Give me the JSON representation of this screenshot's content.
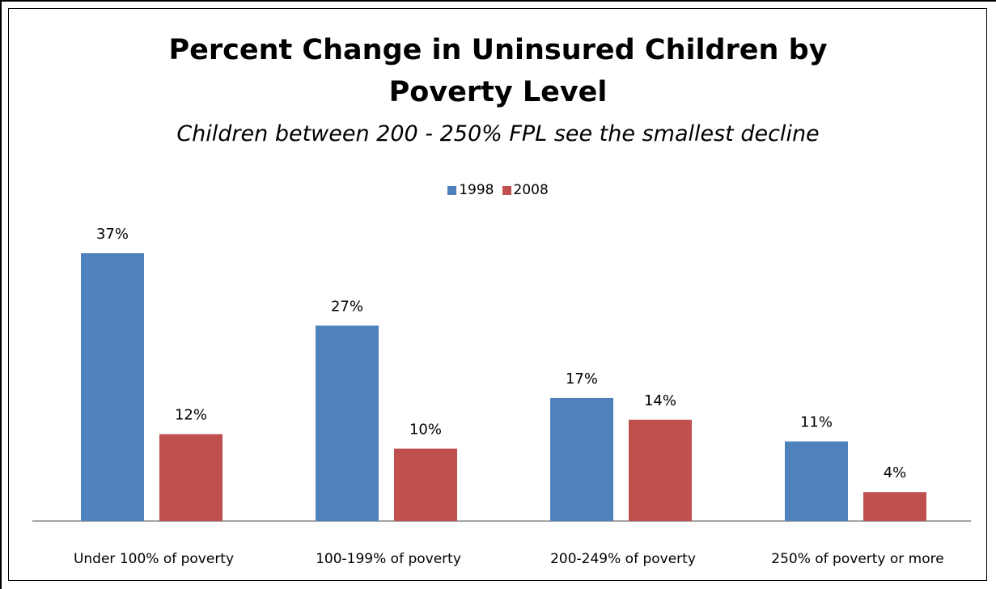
{
  "chart_data": {
    "type": "bar",
    "title": "Percent Change in Uninsured Children by Poverty Level",
    "subtitle": "Children between 200 - 250% FPL see the smallest decline",
    "categories": [
      "Under 100% of poverty",
      "100-199% of poverty",
      "200-249% of poverty",
      "250% of poverty or more"
    ],
    "series": [
      {
        "name": "1998",
        "values": [
          37,
          27,
          17,
          11
        ],
        "labels": [
          "37%",
          "27%",
          "17%",
          "11%"
        ],
        "color": "#4f81bd"
      },
      {
        "name": "2008",
        "values": [
          12,
          10,
          14,
          4
        ],
        "labels": [
          "12%",
          "10%",
          "14%",
          "4%"
        ],
        "color": "#c0504d"
      }
    ],
    "ylim": [
      0,
      40
    ],
    "legend_position": "top",
    "grid": false
  }
}
